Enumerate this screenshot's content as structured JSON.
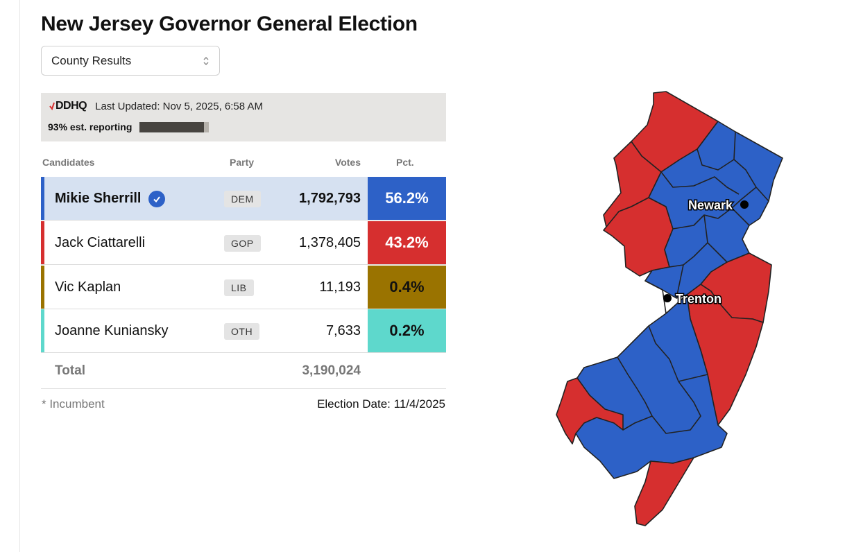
{
  "title": "New Jersey Governor General Election",
  "dropdown": {
    "selected": "County Results"
  },
  "source": {
    "logo": "DDHQ",
    "last_updated": "Last Updated: Nov 5, 2025, 6:58 AM",
    "reporting_text": "93% est. reporting",
    "reporting_fraction": 0.93
  },
  "table": {
    "headers": {
      "candidates": "Candidates",
      "party": "Party",
      "votes": "Votes",
      "pct": "Pct."
    },
    "rows": [
      {
        "name": "Mikie Sherrill",
        "party": "DEM",
        "votes": "1,792,793",
        "pct": "56.2%",
        "winner": true,
        "color": "#2d61c7",
        "pct_text_color": "#ffffff",
        "row_bg": "#d6e1f1"
      },
      {
        "name": "Jack Ciattarelli",
        "party": "GOP",
        "votes": "1,378,405",
        "pct": "43.2%",
        "winner": false,
        "color": "#d62f2f",
        "pct_text_color": "#ffffff",
        "row_bg": "#ffffff"
      },
      {
        "name": "Vic Kaplan",
        "party": "LIB",
        "votes": "11,193",
        "pct": "0.4%",
        "winner": false,
        "color": "#9a7300",
        "pct_text_color": "#111111",
        "row_bg": "#ffffff"
      },
      {
        "name": "Joanne Kuniansky",
        "party": "OTH",
        "votes": "7,633",
        "pct": "0.2%",
        "winner": false,
        "color": "#5ed8cc",
        "pct_text_color": "#111111",
        "row_bg": "#ffffff"
      }
    ],
    "total": {
      "label": "Total",
      "votes": "3,190,024"
    }
  },
  "footer": {
    "incumbent_note": "* Incumbent",
    "election_date": "Election Date: 11/4/2025"
  },
  "map": {
    "cities": [
      {
        "name": "Newark"
      },
      {
        "name": "Trenton"
      }
    ],
    "colors": {
      "dem": "#2d61c7",
      "gop": "#d62f2f"
    }
  }
}
